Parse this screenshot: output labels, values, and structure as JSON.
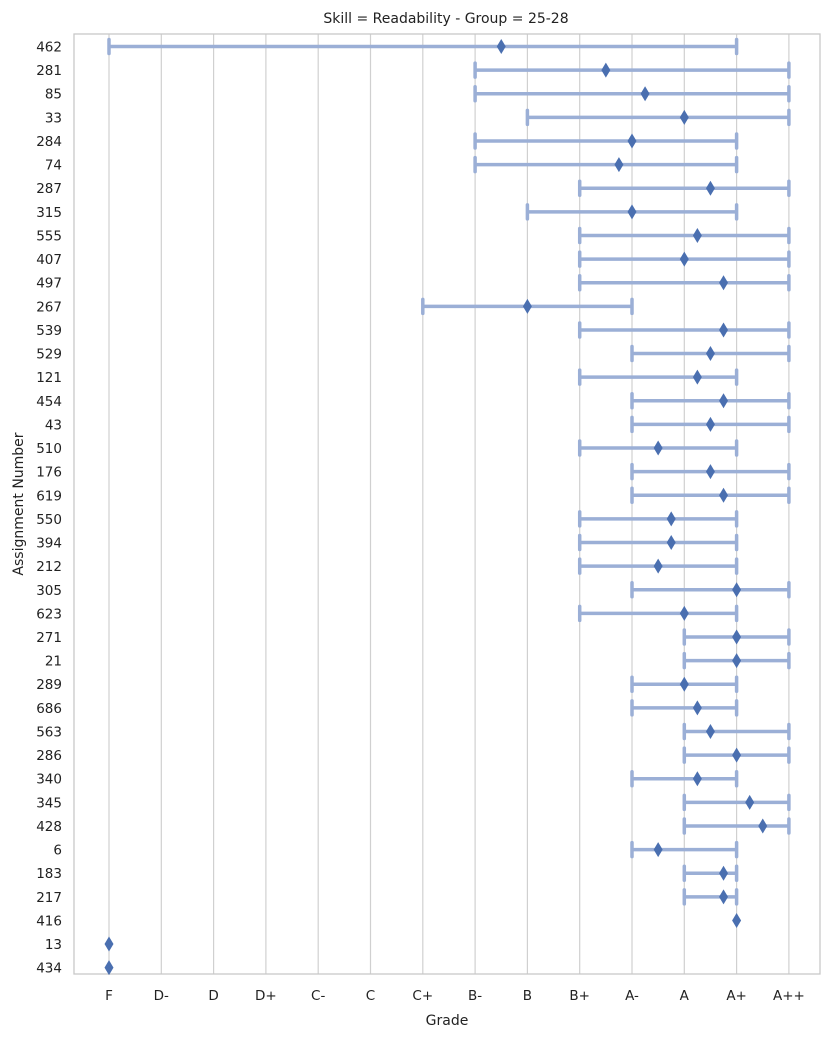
{
  "chart_data": {
    "type": "range-dot",
    "title": "Skill = Readability - Group = 25-28",
    "xlabel": "Grade",
    "ylabel": "Assignment Number",
    "grid": "vertical",
    "x_categories": [
      "F",
      "D-",
      "D",
      "D+",
      "C-",
      "C",
      "C+",
      "B-",
      "B",
      "B+",
      "A-",
      "A",
      "A+",
      "A++"
    ],
    "rows": [
      {
        "label": "462",
        "min": "F",
        "max": "A+",
        "point": 7.5
      },
      {
        "label": "281",
        "min": "B-",
        "max": "A++",
        "point": 9.5
      },
      {
        "label": "85",
        "min": "B-",
        "max": "A++",
        "point": 10.25
      },
      {
        "label": "33",
        "min": "B",
        "max": "A++",
        "point": 11
      },
      {
        "label": "284",
        "min": "B-",
        "max": "A+",
        "point": 10
      },
      {
        "label": "74",
        "min": "B-",
        "max": "A+",
        "point": 9.75
      },
      {
        "label": "287",
        "min": "B+",
        "max": "A++",
        "point": 11.5
      },
      {
        "label": "315",
        "min": "B",
        "max": "A+",
        "point": 10
      },
      {
        "label": "555",
        "min": "B+",
        "max": "A++",
        "point": 11.25
      },
      {
        "label": "407",
        "min": "B+",
        "max": "A++",
        "point": 11
      },
      {
        "label": "497",
        "min": "B+",
        "max": "A++",
        "point": 11.75
      },
      {
        "label": "267",
        "min": "C+",
        "max": "A-",
        "point": 8
      },
      {
        "label": "539",
        "min": "B+",
        "max": "A++",
        "point": 11.75
      },
      {
        "label": "529",
        "min": "A-",
        "max": "A++",
        "point": 11.5
      },
      {
        "label": "121",
        "min": "B+",
        "max": "A+",
        "point": 11.25
      },
      {
        "label": "454",
        "min": "A-",
        "max": "A++",
        "point": 11.75
      },
      {
        "label": "43",
        "min": "A-",
        "max": "A++",
        "point": 11.5
      },
      {
        "label": "510",
        "min": "B+",
        "max": "A+",
        "point": 10.5
      },
      {
        "label": "176",
        "min": "A-",
        "max": "A++",
        "point": 11.5
      },
      {
        "label": "619",
        "min": "A-",
        "max": "A++",
        "point": 11.75
      },
      {
        "label": "550",
        "min": "B+",
        "max": "A+",
        "point": 10.75
      },
      {
        "label": "394",
        "min": "B+",
        "max": "A+",
        "point": 10.75
      },
      {
        "label": "212",
        "min": "B+",
        "max": "A+",
        "point": 10.5
      },
      {
        "label": "305",
        "min": "A-",
        "max": "A++",
        "point": 12
      },
      {
        "label": "623",
        "min": "B+",
        "max": "A+",
        "point": 11
      },
      {
        "label": "271",
        "min": "A",
        "max": "A++",
        "point": 12
      },
      {
        "label": "21",
        "min": "A",
        "max": "A++",
        "point": 12
      },
      {
        "label": "289",
        "min": "A-",
        "max": "A+",
        "point": 11
      },
      {
        "label": "686",
        "min": "A-",
        "max": "A+",
        "point": 11.25
      },
      {
        "label": "563",
        "min": "A",
        "max": "A++",
        "point": 11.5
      },
      {
        "label": "286",
        "min": "A",
        "max": "A++",
        "point": 12
      },
      {
        "label": "340",
        "min": "A-",
        "max": "A+",
        "point": 11.25
      },
      {
        "label": "345",
        "min": "A",
        "max": "A++",
        "point": 12.25
      },
      {
        "label": "428",
        "min": "A",
        "max": "A++",
        "point": 12.5
      },
      {
        "label": "6",
        "min": "A-",
        "max": "A+",
        "point": 10.5
      },
      {
        "label": "183",
        "min": "A",
        "max": "A+",
        "point": 11.75
      },
      {
        "label": "217",
        "min": "A",
        "max": "A+",
        "point": 11.75
      },
      {
        "label": "416",
        "min": "A+",
        "max": "A+",
        "point": 12
      },
      {
        "label": "13",
        "min": "F",
        "max": "F",
        "point": 0
      },
      {
        "label": "434",
        "min": "F",
        "max": "F",
        "point": 0
      }
    ],
    "colors": {
      "range": "#9bafd6",
      "point": "#4a6fb0",
      "grid": "#d0d0d0",
      "frame": "#c8c8c8"
    }
  }
}
